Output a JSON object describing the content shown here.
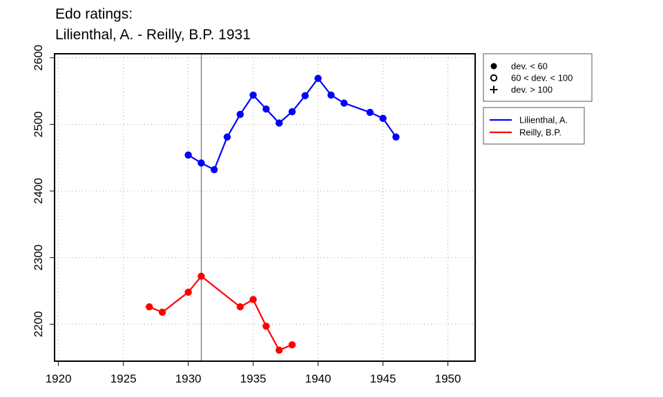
{
  "title_line1": "Edo ratings:",
  "title_line2": "Lilienthal, A. - Reilly, B.P. 1931",
  "chart_data": {
    "type": "line",
    "title": "Edo ratings: Lilienthal, A. - Reilly, B.P. 1931",
    "xlabel": "",
    "ylabel": "",
    "xlim": [
      1919.7,
      1952.1
    ],
    "ylim": [
      2144.5,
      2606
    ],
    "xticks": [
      1920,
      1925,
      1930,
      1935,
      1940,
      1945,
      1950
    ],
    "yticks": [
      2200,
      2300,
      2400,
      2500,
      2600
    ],
    "grid": true,
    "marker_line": 1931,
    "series": [
      {
        "name": "Lilienthal, A.",
        "color": "#0000ff",
        "points": [
          [
            1930,
            2454
          ],
          [
            1931,
            2442
          ],
          [
            1932,
            2432
          ],
          [
            1933,
            2481
          ],
          [
            1934,
            2515
          ],
          [
            1935,
            2544
          ],
          [
            1936,
            2523
          ],
          [
            1937,
            2502
          ],
          [
            1938,
            2519
          ],
          [
            1939,
            2543
          ],
          [
            1940,
            2569
          ],
          [
            1941,
            2544
          ],
          [
            1942,
            2532
          ],
          [
            1944,
            2518
          ],
          [
            1945,
            2509
          ],
          [
            1946,
            2481
          ]
        ]
      },
      {
        "name": "Reilly, B.P.",
        "color": "#ff0000",
        "points": [
          [
            1927,
            2226
          ],
          [
            1928,
            2218
          ],
          [
            1930,
            2248
          ],
          [
            1931,
            2272
          ],
          [
            1934,
            2226
          ],
          [
            1935,
            2237
          ],
          [
            1936,
            2197
          ],
          [
            1937,
            2161
          ],
          [
            1938,
            2169
          ]
        ]
      }
    ],
    "legend_markers": {
      "position": "top-right",
      "items": [
        {
          "symbol": "filled-circle",
          "label": "dev. < 60"
        },
        {
          "symbol": "open-circle",
          "label": "60 < dev. < 100"
        },
        {
          "symbol": "plus",
          "label": "dev. > 100"
        }
      ]
    },
    "legend_series": {
      "position": "right",
      "items": [
        {
          "label": "Lilienthal, A.",
          "color": "#0000ff"
        },
        {
          "label": "Reilly, B.P.",
          "color": "#ff0000"
        }
      ]
    }
  }
}
